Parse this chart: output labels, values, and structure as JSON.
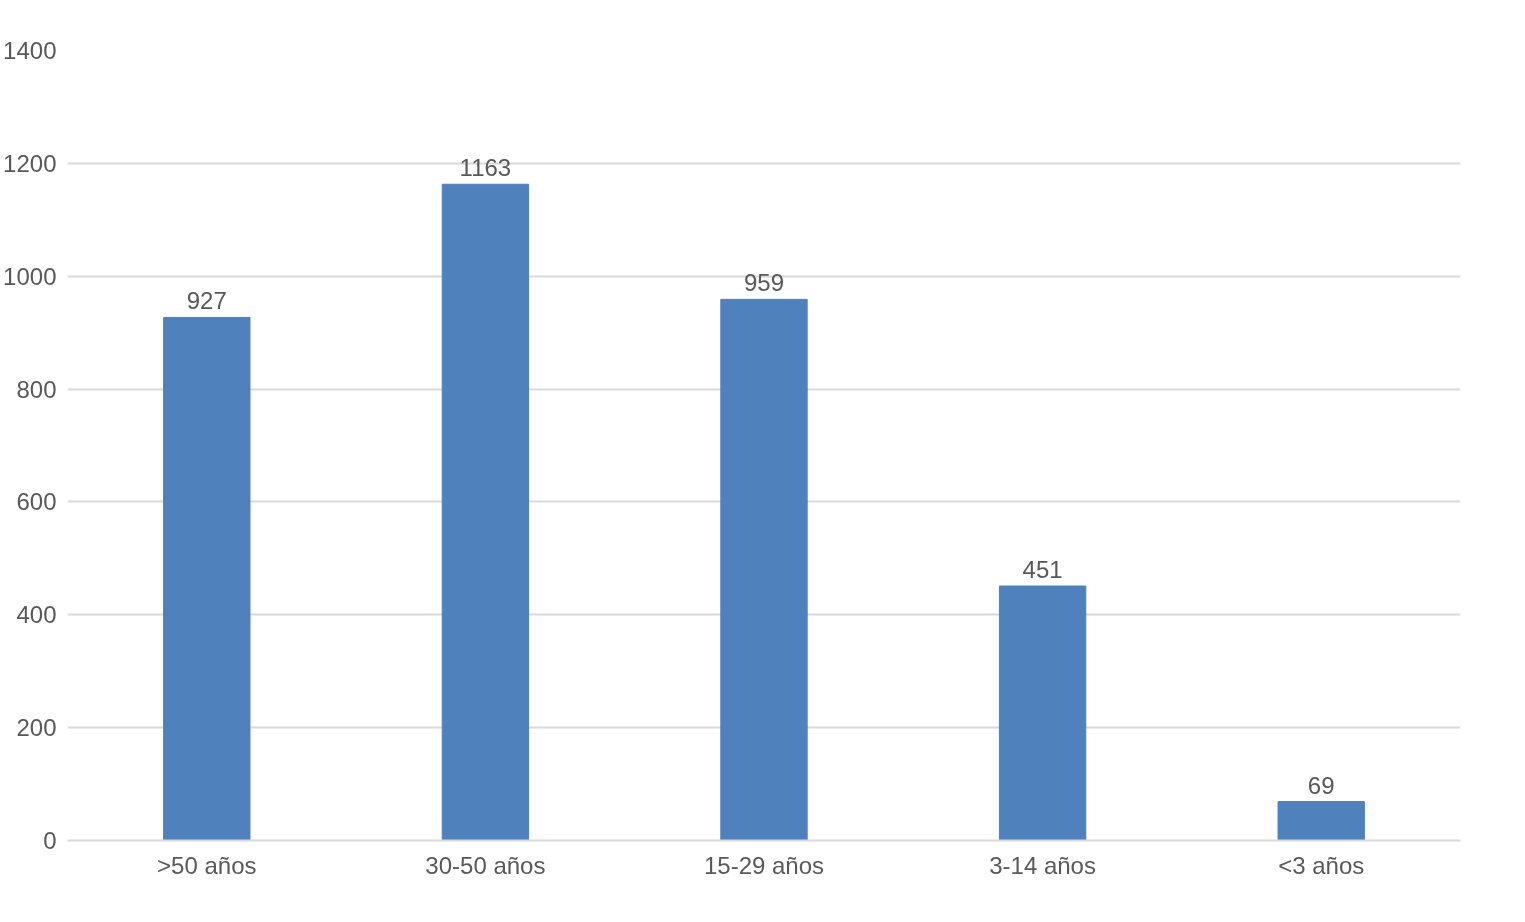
{
  "chart_data": {
    "type": "bar",
    "categories": [
      ">50 años",
      "30-50 años",
      "15-29 años",
      "3-14 años",
      "<3 años"
    ],
    "values": [
      927,
      1163,
      959,
      451,
      69
    ],
    "color": "#4f81bd",
    "ylim": [
      0,
      1400
    ],
    "yticks": [
      0,
      200,
      400,
      600,
      800,
      1000,
      1200,
      1400
    ],
    "grid": "y",
    "data_labels": true
  }
}
